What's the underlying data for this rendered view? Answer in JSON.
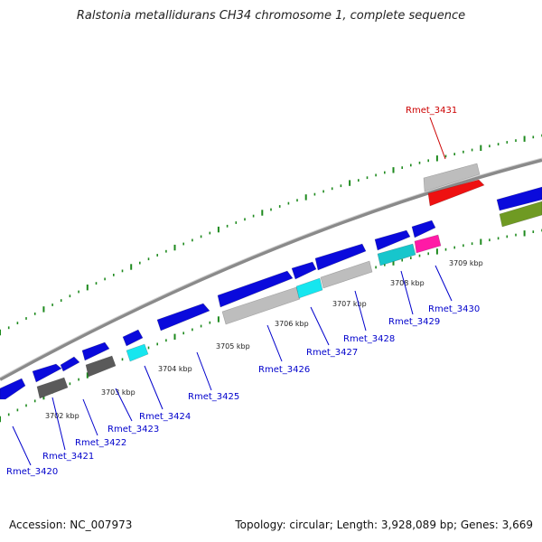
{
  "title": "Ralstonia metallidurans CH34 chromosome 1, complete sequence",
  "accession_text": "Accession: NC_007973",
  "stats_text": "Topology: circular; Length: 3,928,089 bp; Genes: 3,669",
  "colors": {
    "blue": "#0a0adc",
    "grey": "#bdbdbd",
    "darkgrey": "#5a5a5a",
    "cyan": "#16e6ef",
    "teal": "#17c6cc",
    "magenta": "#ff1aa6",
    "red": "#ee1111",
    "olive": "#6f9a23",
    "tick": "#1e8a1e",
    "backbone": "#8a8a8a",
    "label_blue": "#0000cc",
    "label_red": "#cc0000"
  },
  "scale_labels": [
    "3702 kbp",
    "3703 kbp",
    "3704 kbp",
    "3705 kbp",
    "3706 kbp",
    "3707 kbp",
    "3708 kbp",
    "3709 kbp"
  ],
  "gene_labels": [
    {
      "text": "Rmet_3420",
      "color": "blue"
    },
    {
      "text": "Rmet_3421",
      "color": "blue"
    },
    {
      "text": "Rmet_3422",
      "color": "blue"
    },
    {
      "text": "Rmet_3423",
      "color": "blue"
    },
    {
      "text": "Rmet_3424",
      "color": "blue"
    },
    {
      "text": "Rmet_3425",
      "color": "blue"
    },
    {
      "text": "Rmet_3426",
      "color": "blue"
    },
    {
      "text": "Rmet_3427",
      "color": "blue"
    },
    {
      "text": "Rmet_3428",
      "color": "blue"
    },
    {
      "text": "Rmet_3429",
      "color": "blue"
    },
    {
      "text": "Rmet_3430",
      "color": "blue"
    },
    {
      "text": "Rmet_3431",
      "color": "red"
    }
  ]
}
